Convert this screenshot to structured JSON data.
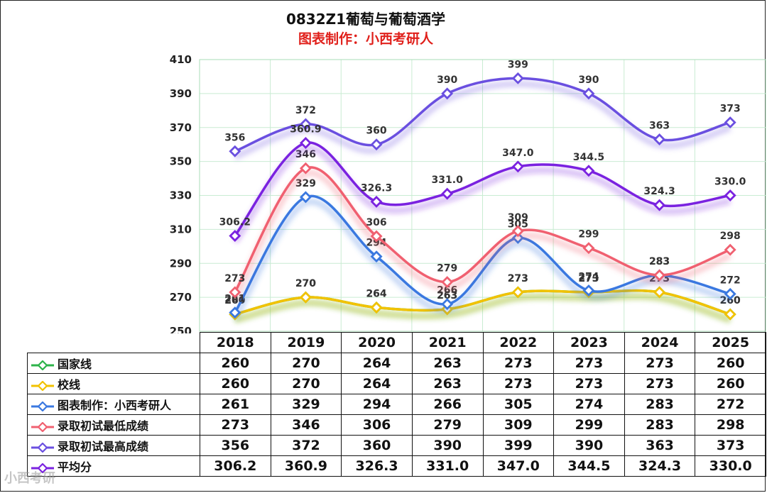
{
  "title": "0832Z1葡萄与葡萄酒学",
  "subtitle": "图表制作：小西考研人",
  "watermark": "小西考研",
  "colors": {
    "国家线": "#2db34a",
    "校线": "#f2c200",
    "图表制作：小西考研人": "#3a78e0",
    "录取初试最低成绩": "#f06070",
    "录取初试最高成绩": "#6a4fe0",
    "平均分": "#7a22e0"
  },
  "chart_data": {
    "type": "line",
    "title": "0832Z1葡萄与葡萄酒学",
    "subtitle": "图表制作：小西考研人",
    "categories": [
      "2018",
      "2019",
      "2020",
      "2021",
      "2022",
      "2023",
      "2024",
      "2025"
    ],
    "ylim": [
      250,
      410
    ],
    "yticks": [
      "250",
      "270",
      "290",
      "310",
      "330",
      "350",
      "370",
      "390",
      "410"
    ],
    "grid": true,
    "legend": "data-table-left",
    "series": [
      {
        "name": "国家线",
        "values": [
          260,
          270,
          264,
          263,
          273,
          273,
          273,
          260
        ],
        "display": [
          "260",
          "270",
          "264",
          "263",
          "273",
          "273",
          "273",
          "260"
        ]
      },
      {
        "name": "校线",
        "values": [
          260,
          270,
          264,
          263,
          273,
          273,
          273,
          260
        ],
        "display": [
          "260",
          "270",
          "264",
          "263",
          "273",
          "273",
          "273",
          "260"
        ]
      },
      {
        "name": "图表制作：小西考研人",
        "values": [
          261,
          329,
          294,
          266,
          305,
          274,
          283,
          272
        ],
        "display": [
          "261",
          "329",
          "294",
          "266",
          "305",
          "274",
          "283",
          "272"
        ]
      },
      {
        "name": "录取初试最低成绩",
        "values": [
          273,
          346,
          306,
          279,
          309,
          299,
          283,
          298
        ],
        "display": [
          "273",
          "346",
          "306",
          "279",
          "309",
          "299",
          "283",
          "298"
        ]
      },
      {
        "name": "录取初试最高成绩",
        "values": [
          356,
          372,
          360,
          390,
          399,
          390,
          363,
          373
        ],
        "display": [
          "356",
          "372",
          "360",
          "390",
          "399",
          "390",
          "363",
          "373"
        ]
      },
      {
        "name": "平均分",
        "values": [
          306.2,
          360.9,
          326.3,
          331.0,
          347.0,
          344.5,
          324.3,
          330.0
        ],
        "display": [
          "306.2",
          "360.9",
          "326.3",
          "331.0",
          "347.0",
          "344.5",
          "324.3",
          "330.0"
        ]
      }
    ]
  }
}
